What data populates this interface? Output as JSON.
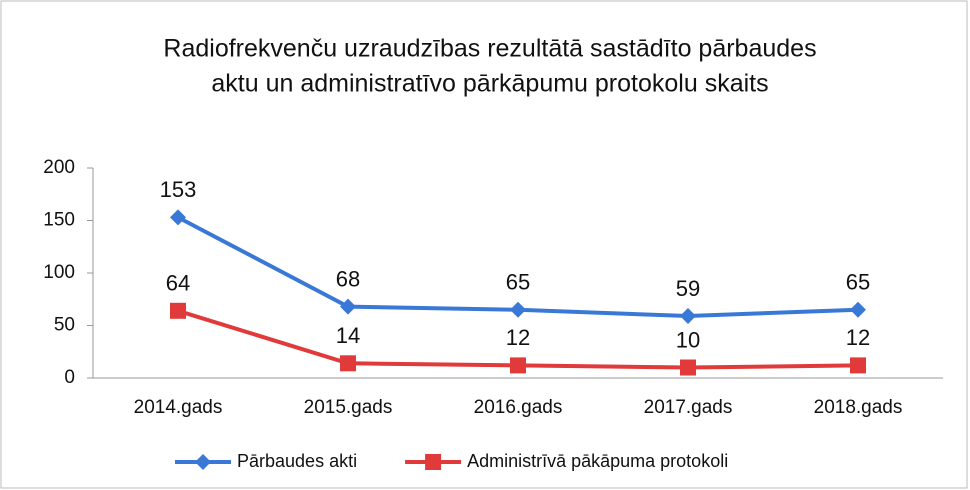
{
  "chart_data": {
    "type": "line",
    "title": [
      "Radiofrekvenču uzraudzības rezultātā sastādīto pārbaudes",
      "aktu un administratīvo pārkāpumu protokolu skaits"
    ],
    "categories": [
      "2014.gads",
      "2015.gads",
      "2016.gads",
      "2017.gads",
      "2018.gads"
    ],
    "series": [
      {
        "name": "Pārbaudes akti",
        "color": "#3a78d8",
        "marker": "diamond",
        "values": [
          153,
          68,
          65,
          59,
          65
        ]
      },
      {
        "name": "Administrīvā pākāpuma protokoli",
        "color": "#e03a3a",
        "marker": "square",
        "values": [
          64,
          14,
          12,
          10,
          12
        ]
      }
    ],
    "ylim": [
      0,
      200
    ],
    "yticks": [
      0,
      50,
      100,
      150,
      200
    ],
    "grid": false,
    "legend": "bottom"
  }
}
